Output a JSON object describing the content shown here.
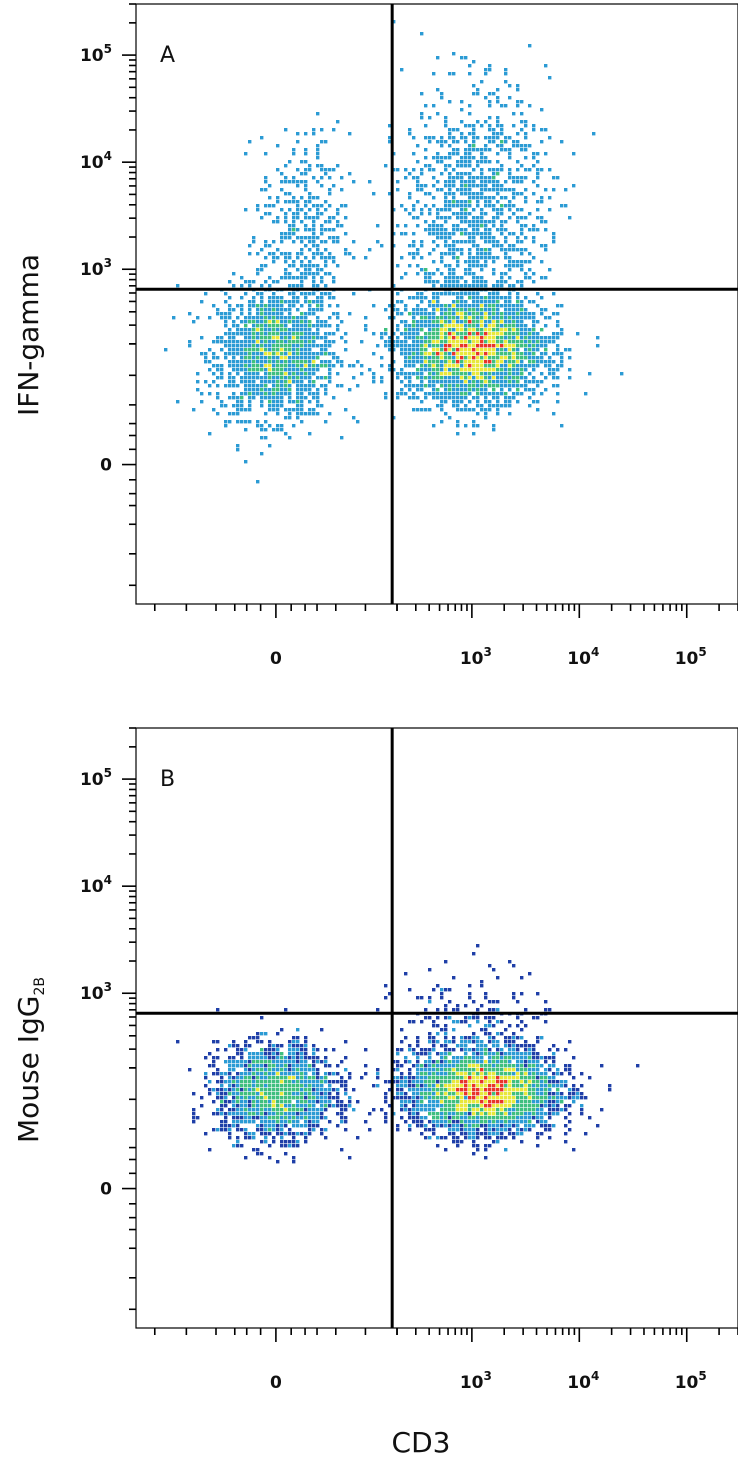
{
  "chart_data": [
    {
      "type": "scatter",
      "style": "flow-cytometry density dot plot",
      "panel_label": "A",
      "xlabel": "",
      "ylabel": "IFN-gamma",
      "ylabel_sub": "",
      "x_scale": "biexponential",
      "y_scale": "biexponential",
      "x_ticks": [
        {
          "base": "0",
          "exp": ""
        },
        {
          "base": "10",
          "exp": "3"
        },
        {
          "base": "10",
          "exp": "4"
        },
        {
          "base": "10",
          "exp": "5"
        }
      ],
      "y_ticks": [
        {
          "base": "0",
          "exp": ""
        },
        {
          "base": "10",
          "exp": "3"
        },
        {
          "base": "10",
          "exp": "4"
        },
        {
          "base": "10",
          "exp": "5"
        }
      ],
      "gates": {
        "x": 180,
        "y": 650
      },
      "populations": [
        {
          "x_center": 0,
          "y_center": 160,
          "x_spread": 0.45,
          "y_spread": 0.5,
          "fraction": 0.26
        },
        {
          "x_center": 1000,
          "y_center": 180,
          "x_spread": 0.55,
          "y_spread": 0.4,
          "fraction": 0.52
        },
        {
          "x_center": 1100,
          "y_center": 4000,
          "x_spread": 0.55,
          "y_spread": 0.9,
          "fraction": 0.16
        },
        {
          "x_center": 20,
          "y_center": 2000,
          "x_spread": 0.35,
          "y_spread": 0.8,
          "fraction": 0.06
        }
      ]
    },
    {
      "type": "scatter",
      "style": "flow-cytometry density dot plot",
      "panel_label": "B",
      "xlabel": "CD3",
      "ylabel": "Mouse IgG",
      "ylabel_sub": "2B",
      "x_scale": "biexponential",
      "y_scale": "biexponential",
      "x_ticks": [
        {
          "base": "0",
          "exp": ""
        },
        {
          "base": "10",
          "exp": "3"
        },
        {
          "base": "10",
          "exp": "4"
        },
        {
          "base": "10",
          "exp": "5"
        }
      ],
      "y_ticks": [
        {
          "base": "0",
          "exp": ""
        },
        {
          "base": "10",
          "exp": "3"
        },
        {
          "base": "10",
          "exp": "4"
        },
        {
          "base": "10",
          "exp": "5"
        }
      ],
      "gates": {
        "x": 180,
        "y": 650
      },
      "populations": [
        {
          "x_center": 0,
          "y_center": 120,
          "x_spread": 0.45,
          "y_spread": 0.35,
          "fraction": 0.3
        },
        {
          "x_center": 1300,
          "y_center": 120,
          "x_spread": 0.55,
          "y_spread": 0.3,
          "fraction": 0.66
        },
        {
          "x_center": 1000,
          "y_center": 400,
          "x_spread": 0.6,
          "y_spread": 0.5,
          "fraction": 0.04
        }
      ]
    }
  ],
  "colors": {
    "density_low": "#1f3fa8",
    "density_mid_low": "#2b9bd4",
    "density_mid": "#3fbf7f",
    "density_mid_high": "#e8e83a",
    "density_high": "#e8342a",
    "gate_line": "#000000",
    "axis": "#000000"
  }
}
